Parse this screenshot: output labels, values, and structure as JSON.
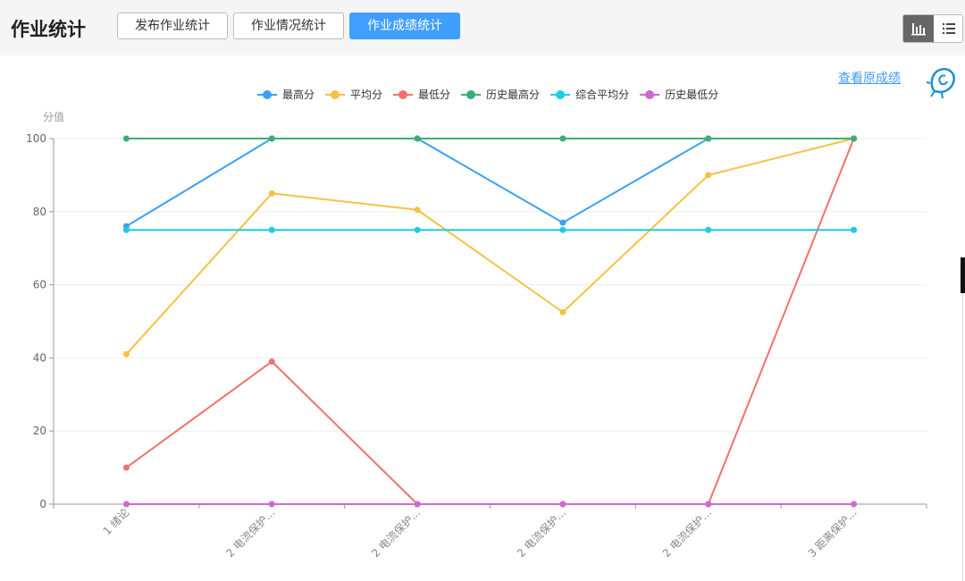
{
  "header": {
    "title": "作业统计",
    "tabs": [
      {
        "label": "发布作业统计",
        "active": false
      },
      {
        "label": "作业情况统计",
        "active": false
      },
      {
        "label": "作业成绩统计",
        "active": true
      }
    ],
    "view_toggle": {
      "chart_icon": "bar-chart-icon",
      "list_icon": "list-icon",
      "selected": "chart"
    }
  },
  "links": {
    "view_original": "查看原成绩"
  },
  "mascot_icon": "bulb-mascot-icon",
  "chart_data": {
    "type": "line",
    "ylabel": "分值",
    "ylim": [
      0,
      100
    ],
    "yticks": [
      0,
      20,
      40,
      60,
      80,
      100
    ],
    "categories": [
      "1 绪论",
      "2 电流保护...",
      "2 电流保护...",
      "2 电流保护...",
      "2 电流保护...",
      "3 距离保护..."
    ],
    "legend_position": "top-center",
    "grid": "horizontal",
    "series": [
      {
        "name": "最高分",
        "color": "#3ba1f0",
        "values": [
          76,
          100,
          100,
          77,
          100,
          100
        ]
      },
      {
        "name": "平均分",
        "color": "#f6c243",
        "values": [
          41,
          85,
          80.5,
          52.5,
          90,
          100
        ]
      },
      {
        "name": "最低分",
        "color": "#f0726b",
        "values": [
          10,
          39,
          0,
          0,
          0,
          100
        ]
      },
      {
        "name": "历史最高分",
        "color": "#3cae72",
        "values": [
          100,
          100,
          100,
          100,
          100,
          100
        ]
      },
      {
        "name": "综合平均分",
        "color": "#1ecbe6",
        "values": [
          75,
          75,
          75,
          75,
          75,
          75
        ]
      },
      {
        "name": "历史最低分",
        "color": "#d068d0",
        "values": [
          0,
          0,
          0,
          0,
          0,
          0
        ]
      }
    ]
  }
}
